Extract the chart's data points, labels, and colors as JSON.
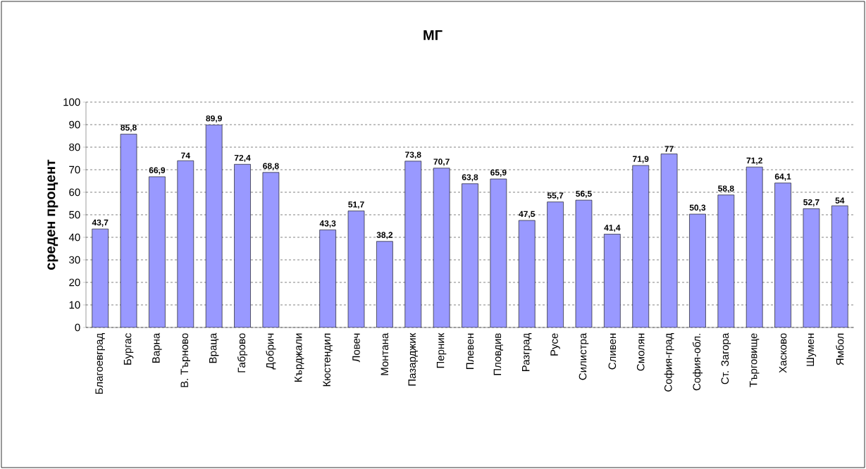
{
  "chart_data": {
    "type": "bar",
    "title": "МГ",
    "ylabel": "среден процент",
    "categories": [
      "Благоевград",
      "Бургас",
      "Варна",
      "В. Търново",
      "Враца",
      "Габрово",
      "Добрич",
      "Кърджали",
      "Кюстендил",
      "Ловеч",
      "Монтана",
      "Пазарджик",
      "Перник",
      "Плевен",
      "Пловдив",
      "Разград",
      "Русе",
      "Силистра",
      "Сливен",
      "Смолян",
      "София-град",
      "София-обл.",
      "Ст. Загора",
      "Търговище",
      "Хасково",
      "Шумен",
      "Ямбол"
    ],
    "values": [
      43.7,
      85.8,
      66.9,
      74,
      89.9,
      72.4,
      68.8,
      null,
      43.3,
      51.7,
      38.2,
      73.8,
      70.7,
      63.8,
      65.9,
      47.5,
      55.7,
      56.5,
      41.4,
      71.9,
      77,
      50.3,
      58.8,
      71.2,
      64.1,
      52.7,
      54
    ],
    "value_labels": [
      "43,7",
      "85,8",
      "66,9",
      "74",
      "89,9",
      "72,4",
      "68,8",
      null,
      "43,3",
      "51,7",
      "38,2",
      "73,8",
      "70,7",
      "63,8",
      "65,9",
      "47,5",
      "55,7",
      "56,5",
      "41,4",
      "71,9",
      "77",
      "50,3",
      "58,8",
      "71,2",
      "64,1",
      "52,7",
      "54"
    ],
    "color": "#9999ff",
    "ylim": [
      0,
      100
    ],
    "yticks": [
      0,
      10,
      20,
      30,
      40,
      50,
      60,
      70,
      80,
      90,
      100
    ],
    "grid": "y"
  }
}
